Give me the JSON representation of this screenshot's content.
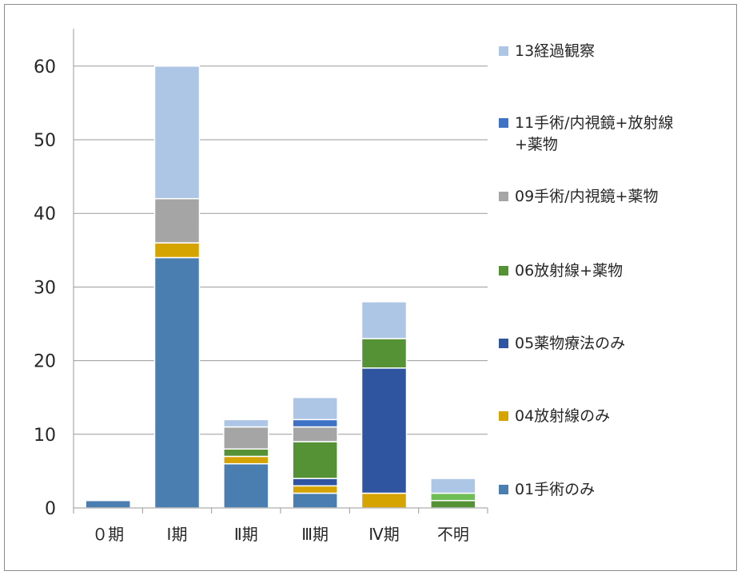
{
  "chart_data": {
    "type": "bar",
    "stacked": true,
    "categories": [
      "０期",
      "Ⅰ期",
      "Ⅱ期",
      "Ⅲ期",
      "Ⅳ期",
      "不明"
    ],
    "ylim": [
      0,
      65
    ],
    "yticks": [
      0,
      10,
      20,
      30,
      40,
      50,
      60
    ],
    "grid": true,
    "legend_position": "right",
    "series": [
      {
        "name": "01手術のみ",
        "color": "#4a7eb0",
        "values": [
          1,
          34,
          6,
          2,
          0,
          0
        ]
      },
      {
        "name": "04放射線のみ",
        "color": "#d6a400",
        "values": [
          0,
          2,
          1,
          1,
          2,
          0
        ]
      },
      {
        "name": "05薬物療法のみ",
        "color": "#2f55a0",
        "values": [
          0,
          0,
          0,
          1,
          17,
          0
        ]
      },
      {
        "name": "06放射線+薬物",
        "color": "#559135",
        "values": [
          0,
          0,
          1,
          5,
          4,
          1
        ]
      },
      {
        "name": "09手術/内視鏡+薬物",
        "color": "#a5a5a5",
        "values": [
          0,
          6,
          3,
          2,
          0,
          0
        ]
      },
      {
        "name": "11手術/内視鏡+放射線+薬物",
        "color": "#3e72c4",
        "values": [
          0,
          0,
          0,
          1,
          0,
          0
        ]
      },
      {
        "name": "13経過観察",
        "color": "#adc6e6",
        "values": [
          0,
          18,
          1,
          3,
          5,
          2
        ]
      }
    ],
    "extra_segments": [
      {
        "category_index": 5,
        "color": "#6fbe55",
        "value": 1,
        "stack_after": "06放射線+薬物"
      }
    ]
  },
  "legend": {
    "items": [
      {
        "lines": [
          "13経過観察"
        ],
        "color": "#adc6e6"
      },
      {
        "lines": [
          "11手術/内視鏡+放射線",
          "+薬物"
        ],
        "color": "#3e72c4"
      },
      {
        "lines": [
          "09手術/内視鏡+薬物"
        ],
        "color": "#a5a5a5"
      },
      {
        "lines": [
          "06放射線+薬物"
        ],
        "color": "#559135"
      },
      {
        "lines": [
          "05薬物療法のみ"
        ],
        "color": "#2f55a0"
      },
      {
        "lines": [
          "04放射線のみ"
        ],
        "color": "#d6a400"
      },
      {
        "lines": [
          "01手術のみ"
        ],
        "color": "#4a7eb0"
      }
    ]
  }
}
